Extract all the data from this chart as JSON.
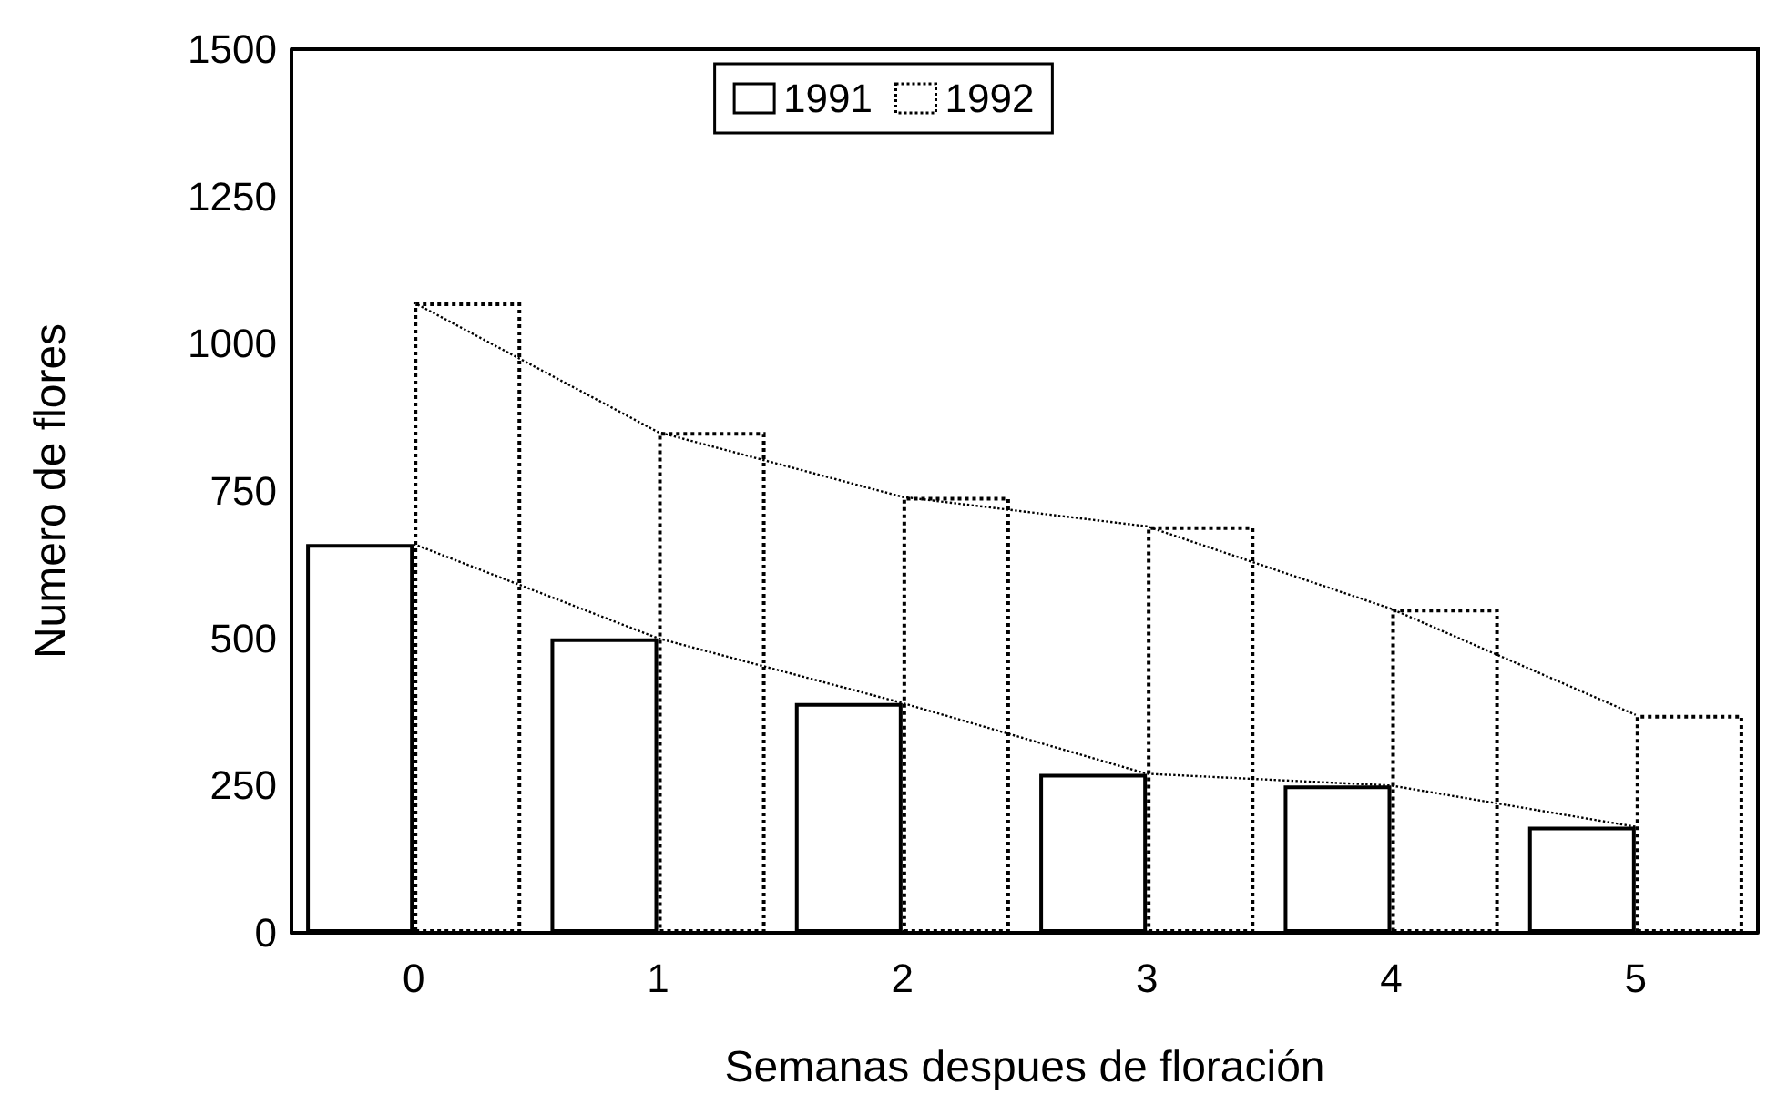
{
  "chart_data": {
    "type": "bar",
    "xlabel": "Semanas despues de floración",
    "ylabel": "Numero de flores",
    "categories": [
      "0",
      "1",
      "2",
      "3",
      "4",
      "5"
    ],
    "series": [
      {
        "name": "1991",
        "color": "#000000",
        "line_style": "solid",
        "values": [
          660,
          500,
          390,
          270,
          250,
          180
        ]
      },
      {
        "name": "1992",
        "color": "#000000",
        "line_style": "dotted",
        "values": [
          1070,
          850,
          740,
          690,
          550,
          370
        ]
      },
      {
        "type": "line",
        "color": "#000000",
        "line_style": "dotted",
        "marker": "none",
        "values": [
          660,
          500,
          390,
          270,
          250,
          180
        ]
      },
      {
        "type": "line",
        "color": "#000000",
        "line_style": "dotted",
        "marker": "none",
        "values": [
          1070,
          850,
          740,
          690,
          550,
          370
        ]
      }
    ],
    "ylim": [
      0,
      1500
    ],
    "yticks": [
      0,
      250,
      500,
      750,
      1000,
      1250,
      1500
    ],
    "grid": false,
    "legend": "top"
  }
}
